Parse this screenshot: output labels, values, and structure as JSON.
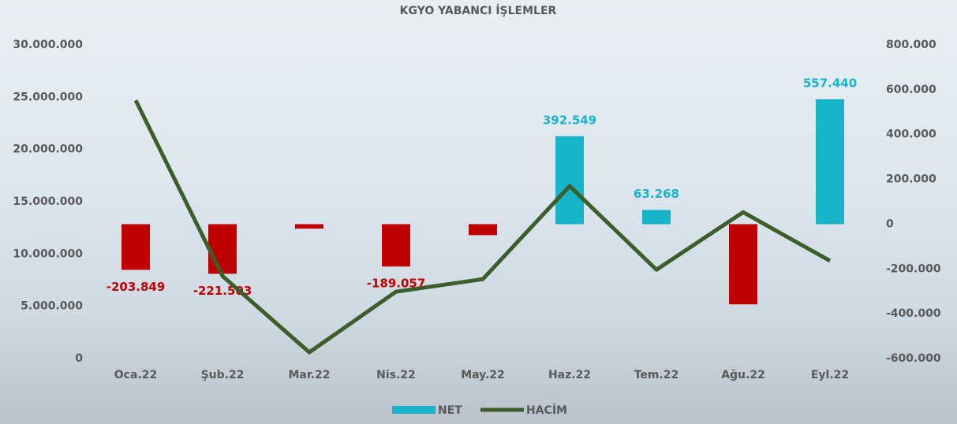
{
  "chart_data": {
    "type": "bar",
    "title": "KGYO YABANCI İŞLEMLER",
    "categories": [
      "Oca.22",
      "Şub.22",
      "Mar.22",
      "Nis.22",
      "May.22",
      "Haz.22",
      "Tem.22",
      "Ağu.22",
      "Eyl.22"
    ],
    "series": [
      {
        "name": "NET",
        "type": "bar",
        "axis": "y2",
        "color": "#17b3c9",
        "negative_color": "#c00000",
        "values": [
          -203849,
          -221503,
          -20000,
          -189057,
          -49000,
          392549,
          63268,
          -358000,
          557440
        ],
        "value_labels": [
          "-203.849",
          "-221.503",
          null,
          "-189.057",
          null,
          "392.549",
          "63.268",
          null,
          "557.440"
        ]
      },
      {
        "name": "HACİM",
        "type": "line",
        "axis": "y",
        "color": "#3b5e2b",
        "values": [
          24700000,
          7900000,
          600000,
          6400000,
          7600000,
          16500000,
          8500000,
          14000000,
          9350000
        ]
      }
    ],
    "ylim": [
      0,
      30000000
    ],
    "yticks": [
      0,
      {
        "value": 5000000,
        "label": "5.000.000"
      },
      {
        "value": 10000000,
        "label": "10.000.000"
      },
      {
        "value": 15000000,
        "label": "15.000.000"
      },
      {
        "value": 20000000,
        "label": "20.000.000"
      },
      {
        "value": 25000000,
        "label": "25.000.000"
      },
      {
        "value": 30000000,
        "label": "30.000.000"
      }
    ],
    "y2lim": [
      -600000,
      800000
    ],
    "y2ticks": [
      {
        "value": -600000,
        "label": "-600.000"
      },
      {
        "value": -400000,
        "label": "-400.000"
      },
      {
        "value": -200000,
        "label": "-200.000"
      },
      0,
      {
        "value": 200000,
        "label": "200.000"
      },
      {
        "value": 400000,
        "label": "400.000"
      },
      {
        "value": 600000,
        "label": "600.000"
      },
      {
        "value": 800000,
        "label": "800.000"
      }
    ]
  }
}
